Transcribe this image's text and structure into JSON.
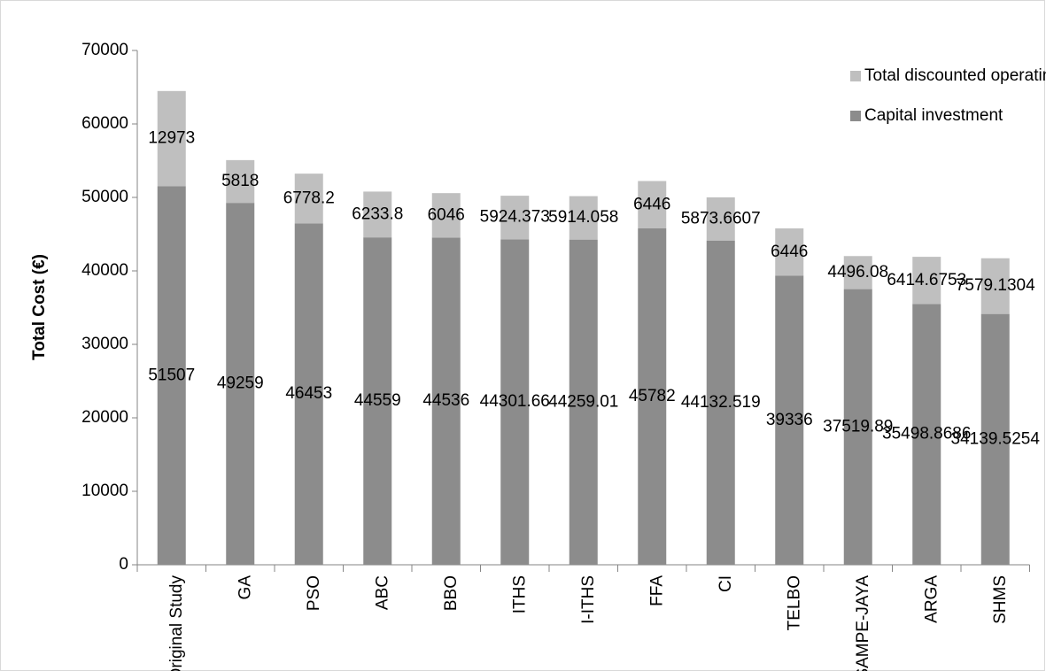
{
  "chart_data": {
    "type": "stacked_bar",
    "y_label": "Total Cost (€)",
    "categories": [
      "Original Study",
      "GA",
      "PSO",
      "ABC",
      "BBO",
      "ITHS",
      "I-ITHS",
      "FFA",
      "CI",
      "TELBO",
      "SAMPE-JAYA",
      "ARGA",
      "SHMS"
    ],
    "series": [
      {
        "name": "Capital investment",
        "color": "#8c8c8c",
        "values": [
          51507,
          49259,
          46453,
          44559,
          44536,
          44301.66,
          44259.01,
          45782,
          44132.519,
          39336,
          37519.89,
          35498.8686,
          34139.5254
        ]
      },
      {
        "name": "Total discounted operating cost",
        "color": "#bfbfbf",
        "values": [
          12973,
          5818,
          6778.2,
          6233.8,
          6046,
          5924.373,
          5914.058,
          6446,
          5873.6607,
          6446,
          4496.08,
          6414.6753,
          7579.1304
        ]
      }
    ],
    "ylim": [
      0,
      70000
    ],
    "yticks": [
      0,
      10000,
      20000,
      30000,
      40000,
      50000,
      60000,
      70000
    ],
    "legend": "top-right"
  }
}
